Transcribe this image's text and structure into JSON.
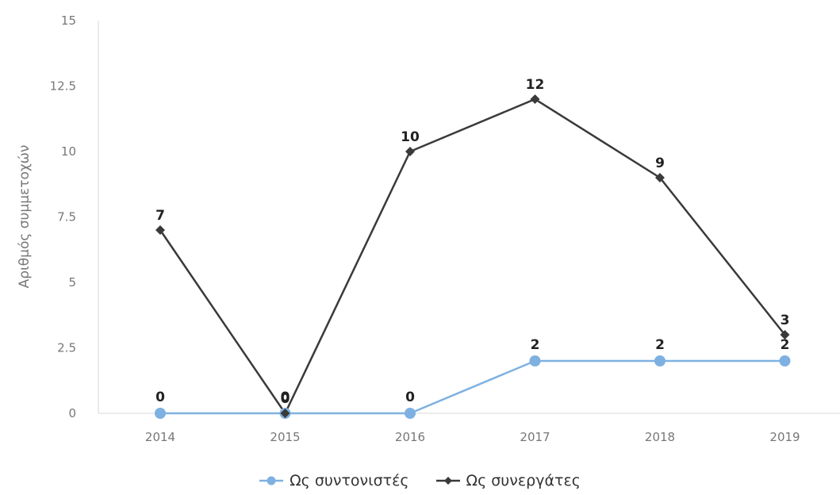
{
  "chart_data": {
    "type": "line",
    "categories": [
      "2014",
      "2015",
      "2016",
      "2017",
      "2018",
      "2019"
    ],
    "ylabel": "Αριθμός συμμετοχών",
    "ylim": [
      0,
      15
    ],
    "yticks": [
      "0",
      "2.5",
      "5",
      "7.5",
      "10",
      "12.5",
      "15"
    ],
    "grid": false,
    "legend_position": "bottom",
    "series": [
      {
        "name": "Ως συντονιστές",
        "values": [
          0,
          0,
          0,
          2,
          2,
          2
        ],
        "color": "#7eb1e1",
        "marker": "circle"
      },
      {
        "name": "Ως συνεργάτες",
        "values": [
          7,
          0,
          10,
          12,
          9,
          3
        ],
        "color": "#3a3a3a",
        "marker": "diamond"
      }
    ]
  }
}
